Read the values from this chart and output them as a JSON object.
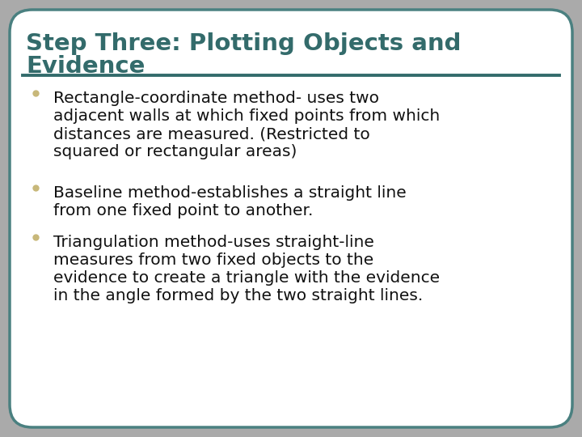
{
  "title_line1": "Step Three: Plotting Objects and",
  "title_line2": "Evidence",
  "title_color": "#336B6B",
  "border_color": "#4A8080",
  "background_color": "#FFFFFF",
  "outer_bg": "#AAAAAA",
  "divider_color": "#336B6B",
  "bullet_color": "#C8B87A",
  "bullet_points": [
    "Rectangle-coordinate method- uses two\nadjacent walls at which fixed points from which\ndistances are measured. (Restricted to\nsquared or rectangular areas)",
    "Baseline method-establishes a straight line\nfrom one fixed point to another.",
    "Triangulation method-uses straight-line\nmeasures from two fixed objects to the\nevidence to create a triangle with the evidence\nin the angle formed by the two straight lines."
  ],
  "text_color": "#111111",
  "title_fontsize": 21,
  "body_fontsize": 14.5,
  "fig_width": 7.2,
  "fig_height": 5.4,
  "dpi": 100
}
